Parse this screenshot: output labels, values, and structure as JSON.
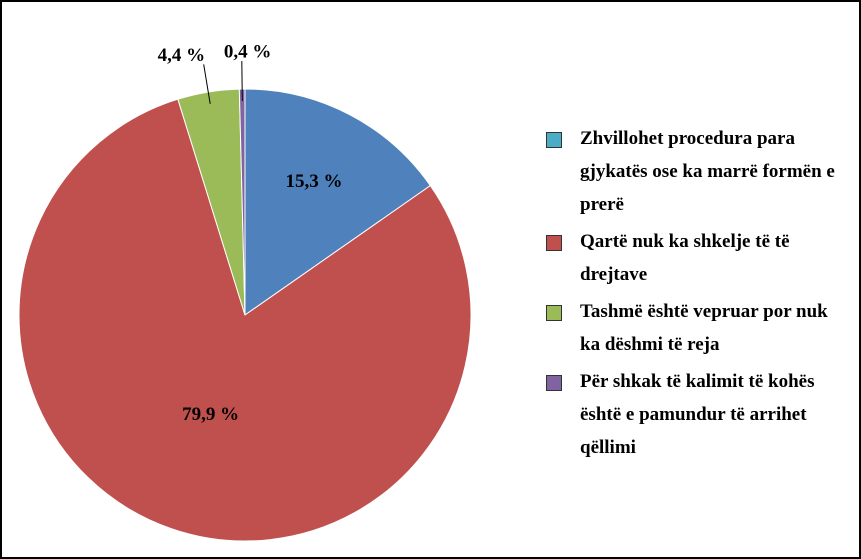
{
  "chart_data": {
    "type": "pie",
    "categories": [
      "Zhvillohet procedura para gjykatës ose ka marrë formën e prerë",
      "Qartë nuk ka shkelje të të drejtave",
      "Tashmë është vepruar por nuk ka dëshmi të reja",
      "Për shkak të kalimit të kohës është e pamundur të arrihet qëllimi"
    ],
    "values": [
      15.3,
      79.9,
      4.4,
      0.4
    ],
    "value_labels": [
      "15,3 %",
      "79,9 %",
      "4,4 %",
      "0,4 %"
    ],
    "colors": [
      "#4f81bd",
      "#c0504d",
      "#9bbb59",
      "#8064a2"
    ],
    "legend_colors": [
      "#4bacc6",
      "#c0504d",
      "#9bbb59",
      "#8064a2"
    ],
    "legend": "right"
  }
}
